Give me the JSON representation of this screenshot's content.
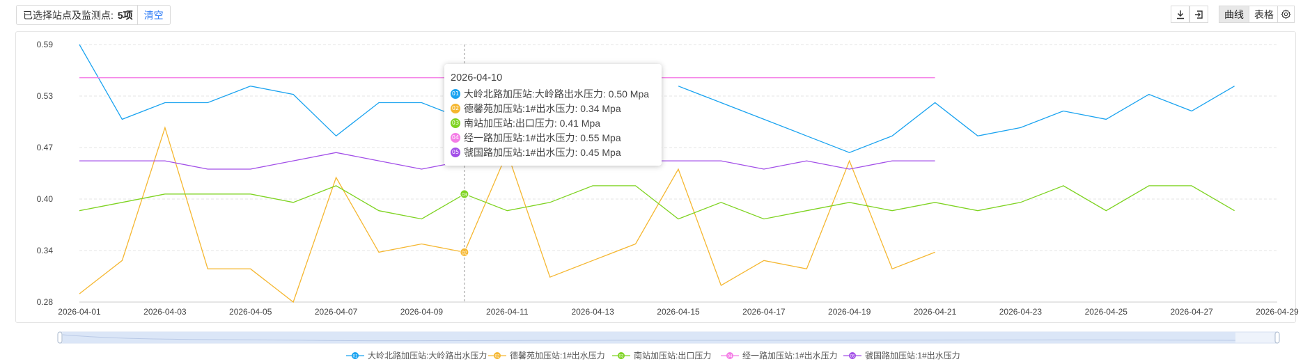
{
  "toolbar": {
    "selected_label": "已选择站点及监测点:",
    "selected_count": "5项",
    "clear_label": "清空",
    "download_icon": "download-icon",
    "export_icon": "export-icon",
    "view_curve": "曲线",
    "view_table": "表格",
    "settings_icon": "gear-icon"
  },
  "colors": {
    "s1": "#1aa3f0",
    "s2": "#f5b731",
    "s3": "#7ed321",
    "s4": "#f47ee6",
    "s5": "#a24fe8",
    "grid": "#e6e6e6",
    "axis": "#444444"
  },
  "tooltip": {
    "date": "2026-04-10",
    "rows": [
      {
        "badge": "01",
        "text": "大岭北路加压站:大岭路出水压力:  0.50 Mpa"
      },
      {
        "badge": "02",
        "text": "德馨苑加压站:1#出水压力:  0.34 Mpa"
      },
      {
        "badge": "03",
        "text": "南站加压站:出口压力:  0.41 Mpa"
      },
      {
        "badge": "04",
        "text": "经一路加压站:1#出水压力:  0.55 Mpa"
      },
      {
        "badge": "05",
        "text": "虢国路加压站:1#出水压力:  0.45 Mpa"
      }
    ]
  },
  "chart_data": {
    "type": "line",
    "x": [
      "2026-04-01",
      "2026-04-02",
      "2026-04-03",
      "2026-04-04",
      "2026-04-05",
      "2026-04-06",
      "2026-04-07",
      "2026-04-08",
      "2026-04-09",
      "2026-04-10",
      "2026-04-11",
      "2026-04-12",
      "2026-04-13",
      "2026-04-14",
      "2026-04-15",
      "2026-04-16",
      "2026-04-17",
      "2026-04-18",
      "2026-04-19",
      "2026-04-20",
      "2026-04-21",
      "2026-04-22",
      "2026-04-23",
      "2026-04-24",
      "2026-04-25",
      "2026-04-26",
      "2026-04-27",
      "2026-04-28",
      "2026-04-29"
    ],
    "x_tick_labels": [
      "2026-04-01",
      "2026-04-03",
      "2026-04-05",
      "2026-04-07",
      "2026-04-09",
      "2026-04-11",
      "2026-04-13",
      "2026-04-15",
      "2026-04-17",
      "2026-04-19",
      "2026-04-21",
      "2026-04-23",
      "2026-04-25",
      "2026-04-27",
      "2026-04-29"
    ],
    "y_tick_labels": [
      "0.28",
      "0.34",
      "0.40",
      "0.47",
      "0.53",
      "0.59"
    ],
    "ylim": [
      0.28,
      0.59
    ],
    "grid": true,
    "legend_position": "bottom-center",
    "highlight_x": "2026-04-10",
    "series": [
      {
        "name": "大岭北路加压站:大岭路出水压力",
        "badge": "01",
        "color_key": "s1",
        "values": [
          0.59,
          0.5,
          0.52,
          0.52,
          0.54,
          0.53,
          0.48,
          0.52,
          0.52,
          0.5,
          null,
          null,
          null,
          null,
          0.54,
          0.52,
          0.5,
          0.48,
          0.46,
          0.48,
          0.52,
          0.48,
          0.49,
          0.51,
          0.5,
          0.53,
          0.51,
          0.54,
          null
        ]
      },
      {
        "name": "德馨苑加压站:1#出水压力",
        "badge": "02",
        "color_key": "s2",
        "values": [
          0.29,
          0.33,
          0.49,
          0.32,
          0.32,
          0.28,
          0.43,
          0.34,
          0.35,
          0.34,
          0.46,
          0.31,
          0.33,
          0.35,
          0.44,
          0.3,
          0.33,
          0.32,
          0.45,
          0.32,
          0.34,
          null,
          null,
          null,
          null,
          null,
          null,
          null,
          null
        ]
      },
      {
        "name": "南站加压站:出口压力",
        "badge": "03",
        "color_key": "s3",
        "values": [
          0.39,
          0.4,
          0.41,
          0.41,
          0.41,
          0.4,
          0.42,
          0.39,
          0.38,
          0.41,
          0.39,
          0.4,
          0.42,
          0.42,
          0.38,
          0.4,
          0.38,
          0.39,
          0.4,
          0.39,
          0.4,
          0.39,
          0.4,
          0.42,
          0.39,
          0.42,
          0.42,
          0.39,
          null
        ]
      },
      {
        "name": "经一路加压站:1#出水压力",
        "badge": "04",
        "color_key": "s4",
        "values": [
          0.55,
          0.55,
          0.55,
          0.55,
          0.55,
          0.55,
          0.55,
          0.55,
          0.55,
          0.55,
          0.55,
          0.55,
          0.55,
          0.55,
          0.55,
          0.55,
          0.55,
          0.55,
          0.55,
          0.55,
          0.55,
          null,
          null,
          null,
          null,
          null,
          null,
          null,
          null
        ]
      },
      {
        "name": "虢国路加压站:1#出水压力",
        "badge": "05",
        "color_key": "s5",
        "values": [
          0.45,
          0.45,
          0.45,
          0.44,
          0.44,
          0.45,
          0.46,
          0.45,
          0.44,
          0.45,
          0.45,
          0.45,
          0.45,
          0.45,
          0.45,
          0.45,
          0.44,
          0.45,
          0.44,
          0.45,
          0.45,
          null,
          null,
          null,
          null,
          null,
          null,
          null,
          null
        ]
      }
    ]
  }
}
